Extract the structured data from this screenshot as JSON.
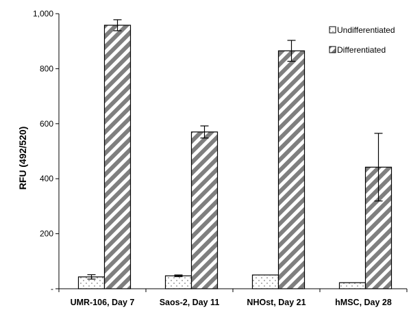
{
  "chart_data": {
    "type": "bar",
    "title": "",
    "xlabel": "",
    "ylabel": "RFU (492/520)",
    "ylim": [
      0,
      1000
    ],
    "yticks": [
      0,
      200,
      400,
      600,
      800,
      1000
    ],
    "ytick_labels": [
      "-",
      "200",
      "400",
      "600",
      "800",
      "1,000"
    ],
    "grid": false,
    "legend_position": "top-right",
    "categories": [
      "UMR-106, Day 7",
      "Saos-2, Day 11",
      "NHOst, Day 21",
      "hMSC, Day 28"
    ],
    "series": [
      {
        "name": "Undifferentiated",
        "pattern": "dots",
        "color": "#ffffff",
        "values": [
          43,
          47,
          50,
          22
        ],
        "errors": [
          8,
          3,
          0,
          0
        ]
      },
      {
        "name": "Differentiated",
        "pattern": "diagonal-stripes",
        "color": "#808080",
        "values": [
          958,
          570,
          865,
          442
        ],
        "errors": [
          20,
          22,
          38,
          123
        ]
      }
    ]
  }
}
